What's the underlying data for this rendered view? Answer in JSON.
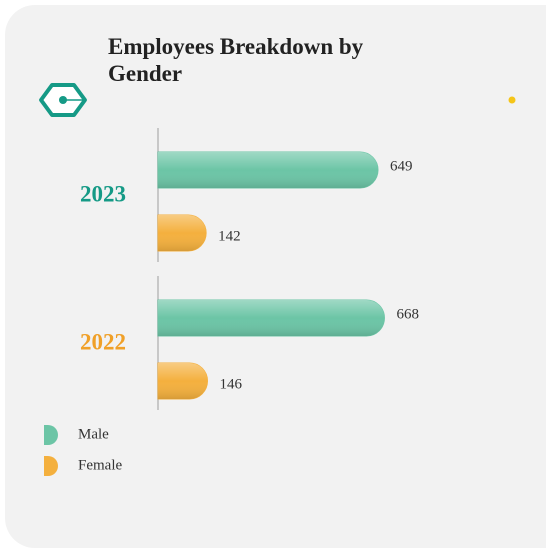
{
  "chart_data": {
    "type": "bar",
    "orientation": "horizontal",
    "title": "Employees Breakdown by Gender",
    "categories": [
      "2023",
      "2022"
    ],
    "category_colors": [
      "#159a86",
      "#f0a028"
    ],
    "series": [
      {
        "name": "Male",
        "color": "#6cc5a6",
        "values": [
          649,
          668
        ]
      },
      {
        "name": "Female",
        "color": "#f4b03e",
        "values": [
          142,
          146
        ]
      }
    ],
    "legend": "bottom-left"
  }
}
